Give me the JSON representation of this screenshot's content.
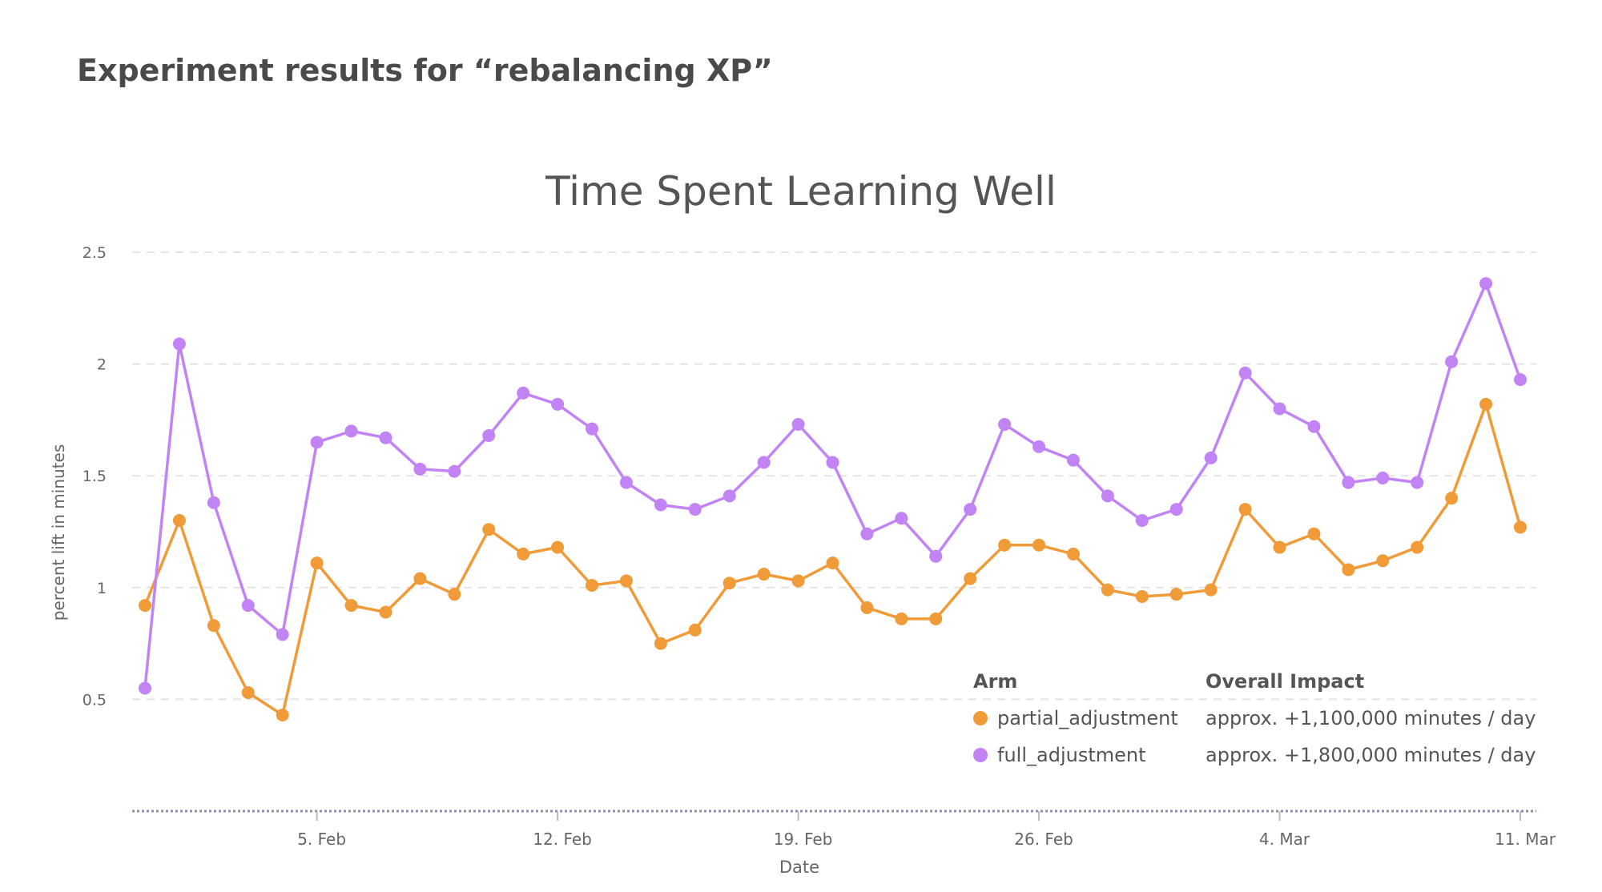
{
  "page_title": "Experiment results for “rebalancing XP”",
  "legend": {
    "arm_header": "Arm",
    "impact_header": "Overall Impact",
    "rows": [
      {
        "arm": "partial_adjustment",
        "impact": "approx. +1,100,000 minutes / day",
        "color": "#F19A38"
      },
      {
        "arm": "full_adjustment",
        "impact": "approx. +1,800,000 minutes / day",
        "color": "#C283F5"
      }
    ]
  },
  "chart_data": {
    "type": "line",
    "title": "Time Spent Learning Well",
    "xlabel": "Date",
    "ylabel": "percent lift in minutes",
    "ylim": [
      0,
      2.5
    ],
    "yticks": [
      "0.5",
      "1",
      "1.5",
      "2",
      "2.5"
    ],
    "grid": true,
    "x": [
      "2024-01-31",
      "2024-02-01",
      "2024-02-02",
      "2024-02-03",
      "2024-02-04",
      "2024-02-05",
      "2024-02-06",
      "2024-02-07",
      "2024-02-08",
      "2024-02-09",
      "2024-02-10",
      "2024-02-11",
      "2024-02-12",
      "2024-02-13",
      "2024-02-14",
      "2024-02-15",
      "2024-02-16",
      "2024-02-17",
      "2024-02-18",
      "2024-02-19",
      "2024-02-20",
      "2024-02-21",
      "2024-02-22",
      "2024-02-23",
      "2024-02-24",
      "2024-02-25",
      "2024-02-26",
      "2024-02-27",
      "2024-02-28",
      "2024-02-29",
      "2024-03-01",
      "2024-03-02",
      "2024-03-03",
      "2024-03-04",
      "2024-03-05",
      "2024-03-06",
      "2024-03-07",
      "2024-03-08",
      "2024-03-09",
      "2024-03-10",
      "2024-03-11"
    ],
    "xticks": [
      {
        "date": "2024-02-05",
        "label": "5. Feb"
      },
      {
        "date": "2024-02-12",
        "label": "12. Feb"
      },
      {
        "date": "2024-02-19",
        "label": "19. Feb"
      },
      {
        "date": "2024-02-26",
        "label": "26. Feb"
      },
      {
        "date": "2024-03-04",
        "label": "4. Mar"
      },
      {
        "date": "2024-03-11",
        "label": "11. Mar"
      }
    ],
    "series": [
      {
        "name": "partial_adjustment",
        "color": "#F19A38",
        "values": [
          0.92,
          1.3,
          0.83,
          0.53,
          0.43,
          1.11,
          0.92,
          0.89,
          1.04,
          0.97,
          1.26,
          1.15,
          1.18,
          1.01,
          1.03,
          0.75,
          0.81,
          1.02,
          1.06,
          1.03,
          1.11,
          0.91,
          0.86,
          0.86,
          1.04,
          1.19,
          1.19,
          1.15,
          0.99,
          0.96,
          0.97,
          0.99,
          1.35,
          1.18,
          1.24,
          1.08,
          1.12,
          1.18,
          1.4,
          1.82,
          1.27
        ]
      },
      {
        "name": "full_adjustment",
        "color": "#C283F5",
        "values": [
          0.55,
          2.09,
          1.38,
          0.92,
          0.79,
          1.65,
          1.7,
          1.67,
          1.53,
          1.52,
          1.68,
          1.87,
          1.82,
          1.71,
          1.47,
          1.37,
          1.35,
          1.41,
          1.56,
          1.73,
          1.56,
          1.24,
          1.31,
          1.14,
          1.35,
          1.73,
          1.63,
          1.57,
          1.41,
          1.3,
          1.35,
          1.58,
          1.96,
          1.8,
          1.72,
          1.47,
          1.49,
          1.47,
          2.01,
          2.36,
          1.93
        ]
      }
    ]
  }
}
